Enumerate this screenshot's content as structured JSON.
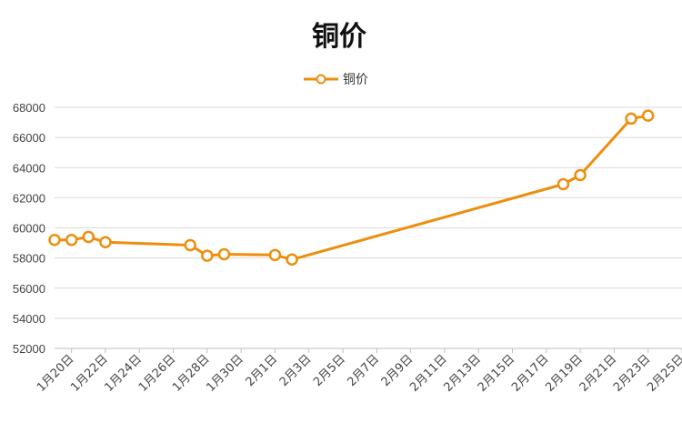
{
  "chart_data": {
    "type": "line",
    "title": "铜价",
    "legend": {
      "position": "top",
      "entries": [
        "铜价"
      ]
    },
    "series_color": "#ED8E0E",
    "grid": true,
    "xlabel": "",
    "ylabel": "",
    "ylim": [
      52000,
      68000
    ],
    "yticks": [
      "52000",
      "54000",
      "56000",
      "58000",
      "60000",
      "62000",
      "64000",
      "66000",
      "68000"
    ],
    "xlim": [
      "1月19日",
      "2月25日"
    ],
    "xticks": [
      {
        "label": "1月20日",
        "day": 20
      },
      {
        "label": "1月22日",
        "day": 22
      },
      {
        "label": "1月24日",
        "day": 24
      },
      {
        "label": "1月26日",
        "day": 26
      },
      {
        "label": "1月28日",
        "day": 28
      },
      {
        "label": "1月30日",
        "day": 30
      },
      {
        "label": "2月1日",
        "day": 32
      },
      {
        "label": "2月3日",
        "day": 34
      },
      {
        "label": "2月5日",
        "day": 36
      },
      {
        "label": "2月7日",
        "day": 38
      },
      {
        "label": "2月9日",
        "day": 40
      },
      {
        "label": "2月11日",
        "day": 42
      },
      {
        "label": "2月13日",
        "day": 44
      },
      {
        "label": "2月15日",
        "day": 46
      },
      {
        "label": "2月17日",
        "day": 48
      },
      {
        "label": "2月19日",
        "day": 50
      },
      {
        "label": "2月21日",
        "day": 52
      },
      {
        "label": "2月23日",
        "day": 54
      },
      {
        "label": "2月25日",
        "day": 56
      }
    ],
    "series": [
      {
        "name": "铜价",
        "points": [
          {
            "date": "1月19日",
            "day": 19,
            "value": 59200
          },
          {
            "date": "1月20日",
            "day": 20,
            "value": 59200
          },
          {
            "date": "1月21日",
            "day": 21,
            "value": 59400
          },
          {
            "date": "1月22日",
            "day": 22,
            "value": 59050
          },
          {
            "date": "1月27日",
            "day": 27,
            "value": 58850
          },
          {
            "date": "1月28日",
            "day": 28,
            "value": 58150
          },
          {
            "date": "1月29日",
            "day": 29,
            "value": 58250
          },
          {
            "date": "2月1日",
            "day": 32,
            "value": 58200
          },
          {
            "date": "2月2日",
            "day": 33,
            "value": 57900
          },
          {
            "date": "2月18日",
            "day": 49,
            "value": 62900
          },
          {
            "date": "2月19日",
            "day": 50,
            "value": 63500
          },
          {
            "date": "2月22日",
            "day": 53,
            "value": 67250
          },
          {
            "date": "2月23日",
            "day": 54,
            "value": 67450
          }
        ]
      }
    ]
  }
}
